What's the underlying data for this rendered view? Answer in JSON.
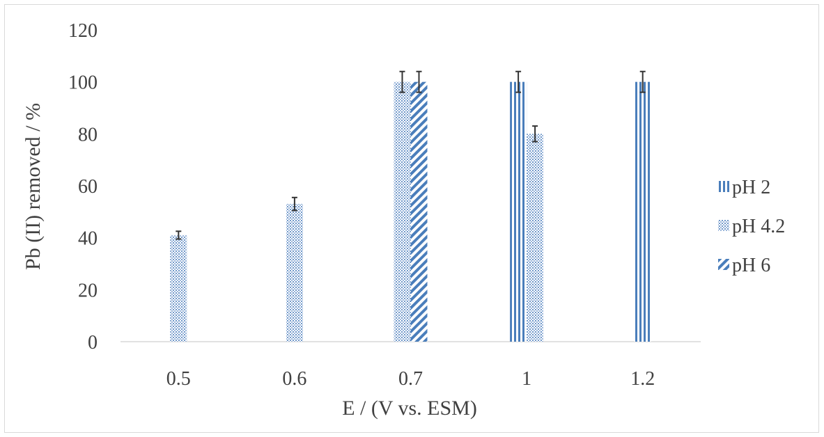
{
  "chart_data": {
    "type": "bar",
    "title": "",
    "xlabel": "E / (V vs. ESM)",
    "ylabel": "Pb (II) removed / %",
    "categories": [
      "0.5",
      "0.6",
      "0.7",
      "1",
      "1.2"
    ],
    "ylim": [
      0,
      120
    ],
    "yticks": [
      0,
      20,
      40,
      60,
      80,
      100,
      120
    ],
    "grid": false,
    "legend_position": "right",
    "colors": {
      "bar": "#4a7ebb",
      "text": "#404040",
      "axis": "#d9d9d9",
      "error": "#333333"
    },
    "series": [
      {
        "name": "pH 2",
        "pattern": "vertical-stripes",
        "values": [
          null,
          null,
          null,
          100,
          100
        ],
        "errors": [
          null,
          null,
          null,
          4,
          4
        ]
      },
      {
        "name": "pH 4.2",
        "pattern": "dots",
        "values": [
          41,
          53,
          100,
          80,
          null
        ],
        "errors": [
          1.5,
          2.5,
          4,
          3,
          null
        ]
      },
      {
        "name": "pH 6",
        "pattern": "diagonal",
        "values": [
          null,
          null,
          100,
          null,
          null
        ],
        "errors": [
          null,
          null,
          4,
          null,
          null
        ]
      }
    ]
  }
}
